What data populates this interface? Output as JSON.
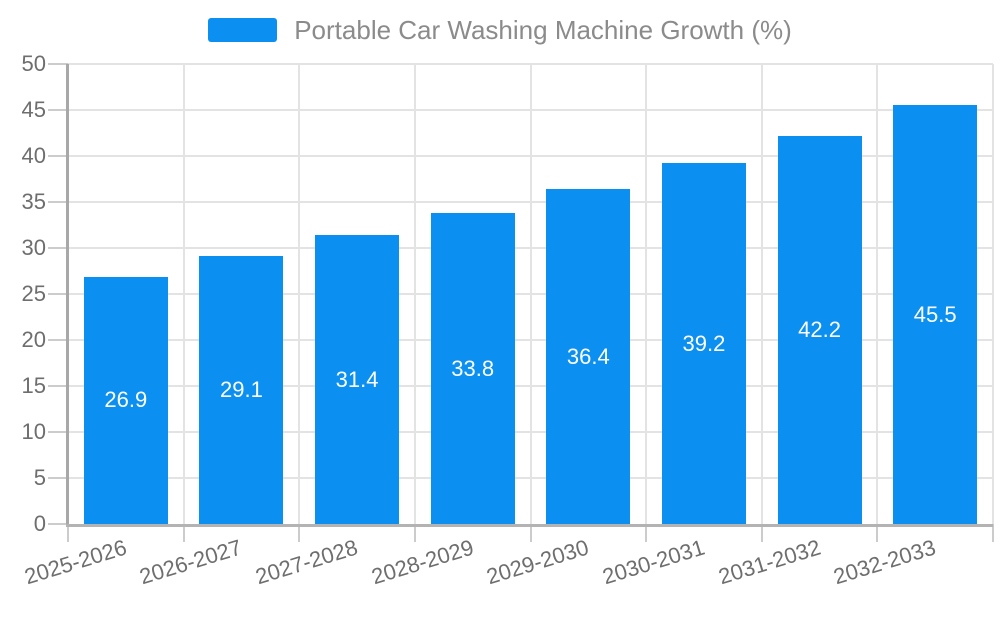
{
  "legend": {
    "position": "top-center",
    "items": [
      {
        "label": "Portable Car Washing Machine Growth (%)",
        "color": "#0b90f1"
      }
    ]
  },
  "chart_data": {
    "type": "bar",
    "title": "Portable Car Washing Machine Growth (%)",
    "categories": [
      "2025-2026",
      "2026-2027",
      "2027-2028",
      "2028-2029",
      "2029-2030",
      "2030-2031",
      "2031-2032",
      "2032-2033"
    ],
    "series": [
      {
        "name": "Portable Car Washing Machine Growth (%)",
        "values": [
          26.9,
          29.1,
          31.4,
          33.8,
          36.4,
          39.2,
          42.2,
          45.5
        ]
      }
    ],
    "value_labels": [
      "26.9",
      "29.1",
      "31.4",
      "33.8",
      "36.4",
      "39.2",
      "42.2",
      "45.5"
    ],
    "xlabel": "",
    "ylabel": "",
    "ylim": [
      0,
      50
    ],
    "ytick_step": 5,
    "yticks": [
      0,
      5,
      10,
      15,
      20,
      25,
      30,
      35,
      40,
      45,
      50
    ],
    "grid": true,
    "legend_position": "top-center",
    "value_label_position": "inside-center",
    "x_label_rotation_deg": -17
  },
  "colors": {
    "bar": "#0b90f1",
    "bar_value_label": "#ffffff",
    "grid_line": "#e3e3e3",
    "tick_mark": "#cccccc",
    "axis_line_x": "#b3b3b3",
    "axis_line_y": "#a8a8a8",
    "axis_label_text": "#6e6e6e",
    "legend_text": "#8b8b8b",
    "background": "#ffffff"
  }
}
